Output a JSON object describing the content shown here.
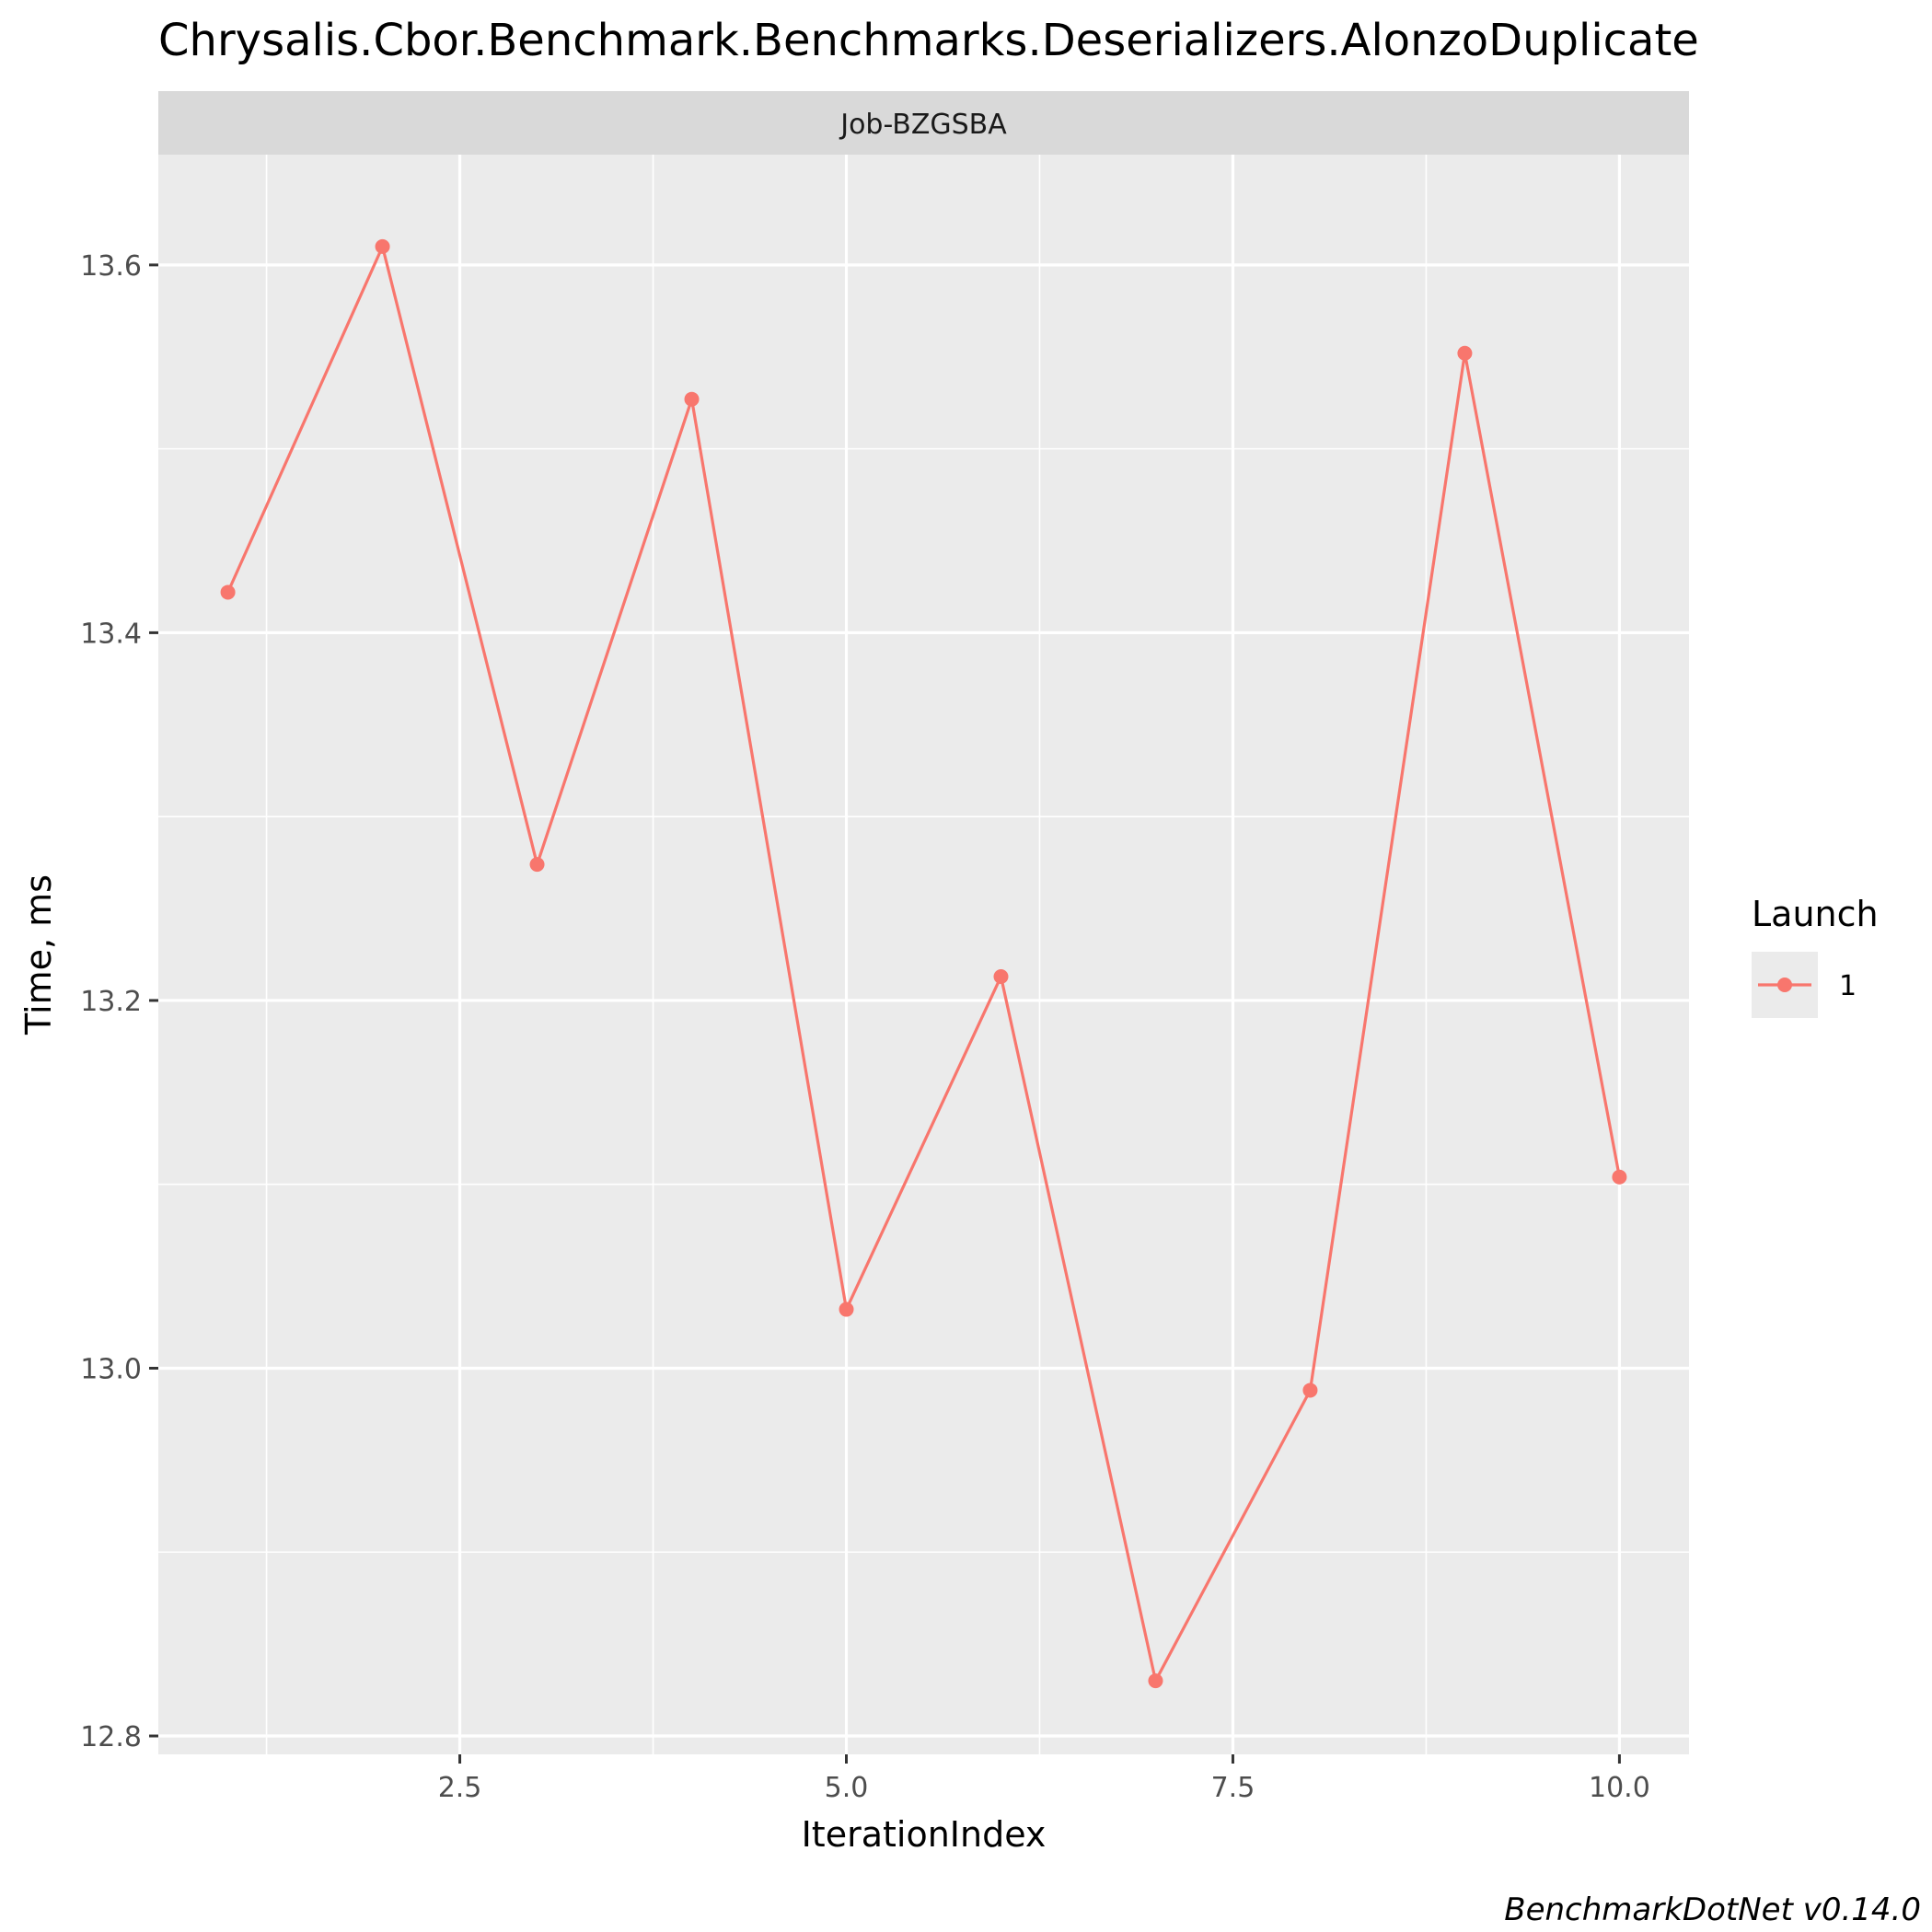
{
  "chart_data": {
    "type": "line",
    "title": "Chrysalis.Cbor.Benchmark.Benchmarks.Deserializers.AlonzoDuplicate",
    "facet_label": "Job-BZGSBA",
    "xlabel": "IterationIndex",
    "ylabel": "Time, ms",
    "xlim": [
      0.55,
      10.45
    ],
    "ylim": [
      12.79,
      13.66
    ],
    "x_ticks": [
      2.5,
      5.0,
      7.5,
      10.0
    ],
    "x_tick_labels": [
      "2.5",
      "5.0",
      "7.5",
      "10.0"
    ],
    "y_ticks": [
      12.8,
      13.0,
      13.2,
      13.4,
      13.6
    ],
    "y_tick_labels": [
      "12.8",
      "13.0",
      "13.2",
      "13.4",
      "13.6"
    ],
    "grid": true,
    "legend": {
      "title": "Launch",
      "position": "right",
      "entries": [
        "1"
      ]
    },
    "series": [
      {
        "name": "1",
        "color": "#F8766D",
        "x": [
          1,
          2,
          3,
          4,
          5,
          6,
          7,
          8,
          9,
          10
        ],
        "y": [
          13.422,
          13.61,
          13.274,
          13.527,
          13.032,
          13.213,
          12.83,
          12.988,
          13.552,
          13.104
        ]
      }
    ],
    "caption": "BenchmarkDotNet v0.14.0"
  }
}
